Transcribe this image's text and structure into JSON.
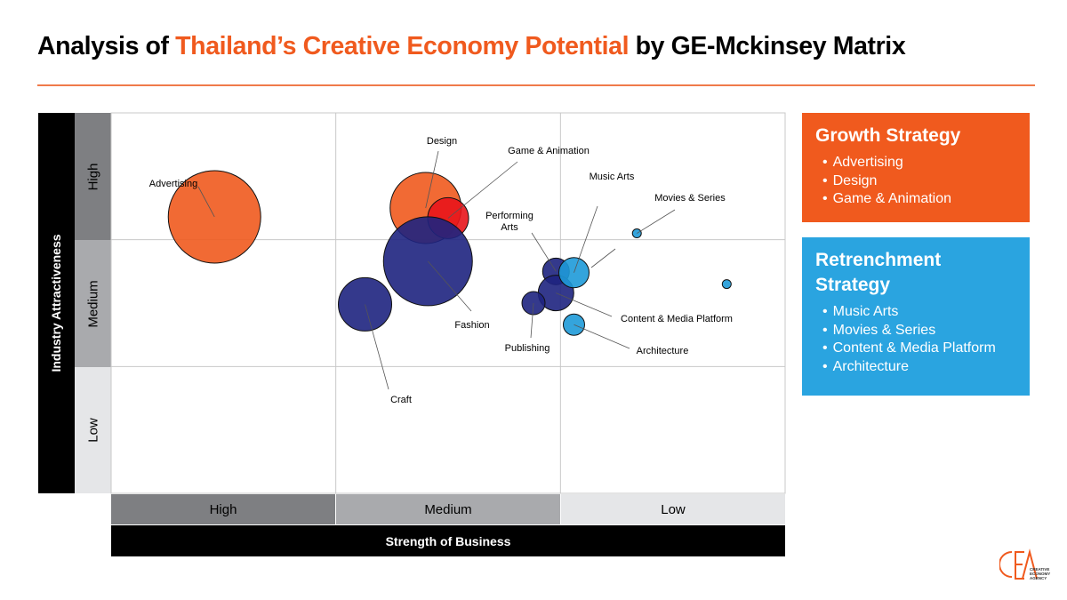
{
  "title": {
    "prefix": "Analysis of ",
    "highlight": "Thailand’s Creative Economy Potential",
    "suffix": " by GE-Mckinsey Matrix"
  },
  "colors": {
    "accent_orange": "#f05a1e",
    "growth": "#f05a1e",
    "retrenchment": "#2aa4e0",
    "bubble_red": "#e8151b",
    "bubble_navy": "#1e2380",
    "bubble_blue": "#1e9ad8"
  },
  "chart_data": {
    "type": "scatter",
    "title": "",
    "xlabel": "Strength of Business",
    "ylabel": "Industry Attractiveness",
    "x_categories": [
      "High",
      "Medium",
      "Low"
    ],
    "y_categories": [
      "High",
      "Medium",
      "Low"
    ],
    "x_range": [
      3,
      0
    ],
    "y_range": [
      0,
      3
    ],
    "grid": true,
    "series": [
      {
        "name": "Advertising",
        "x": 2.54,
        "y": 2.18,
        "size": 52,
        "color": "#f05a1e",
        "label": "Advertising"
      },
      {
        "name": "Design",
        "x": 1.6,
        "y": 2.25,
        "size": 40,
        "color": "#f05a1e",
        "label": "Design"
      },
      {
        "name": "Game & Animation",
        "x": 1.5,
        "y": 2.17,
        "size": 23,
        "color": "#e8151b",
        "label": "Game & Animation"
      },
      {
        "name": "Fashion",
        "x": 1.59,
        "y": 1.83,
        "size": 50,
        "color": "#1e2380",
        "label": "Fashion"
      },
      {
        "name": "Craft",
        "x": 1.87,
        "y": 1.49,
        "size": 30,
        "color": "#1e2380",
        "label": "Craft"
      },
      {
        "name": "Performing Arts",
        "x": 1.02,
        "y": 1.75,
        "size": 15,
        "color": "#1e2380",
        "label": "Performing\nArts"
      },
      {
        "name": "Content & Media Platform",
        "x": 1.02,
        "y": 1.58,
        "size": 20,
        "color": "#1e2380",
        "label": "Content & Media Platform"
      },
      {
        "name": "Publishing",
        "x": 1.12,
        "y": 1.5,
        "size": 13,
        "color": "#1e2380",
        "label": "Publishing"
      },
      {
        "name": "Music Arts",
        "x": 0.94,
        "y": 1.74,
        "size": 17,
        "color": "#1e9ad8",
        "label": "Music Arts"
      },
      {
        "name": "Architecture",
        "x": 0.94,
        "y": 1.33,
        "size": 12,
        "color": "#1e9ad8",
        "label": "Architecture"
      },
      {
        "name": "Movies & Series",
        "x": 0.66,
        "y": 2.05,
        "size": 5,
        "color": "#1e9ad8",
        "label": "Movies & Series"
      },
      {
        "name": "Movies & Series (small)",
        "x": 0.26,
        "y": 1.65,
        "size": 5,
        "color": "#1e9ad8",
        "label": ""
      }
    ]
  },
  "growth_strategy": {
    "title": "Growth Strategy",
    "items": [
      "Advertising",
      "Design",
      "Game & Animation"
    ]
  },
  "retrenchment_strategy": {
    "title_line1": "Retrenchment",
    "title_line2": "Strategy",
    "items": [
      "Music Arts",
      "Movies & Series",
      "Content & Media Platform",
      "Architecture"
    ]
  },
  "logo": {
    "mark": "CEA",
    "text_line1": "CREATIVE",
    "text_line2": "ECONOMY",
    "text_line3": "AGENCY"
  }
}
